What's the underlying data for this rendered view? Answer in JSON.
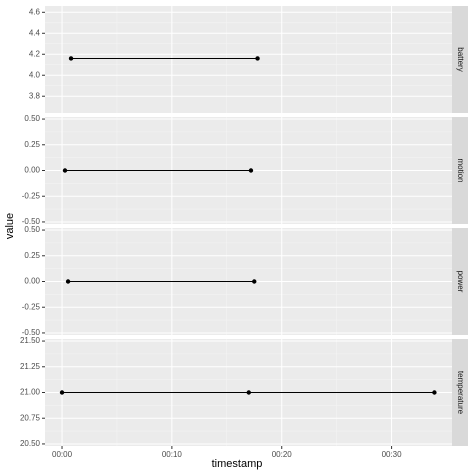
{
  "chart_data": {
    "type": "line",
    "xlabel": "timestamp",
    "ylabel": "value",
    "xlim": [
      -1.55,
      35.5
    ],
    "xticks": [
      {
        "value": 0,
        "label": "00:00"
      },
      {
        "value": 10,
        "label": "00:10"
      },
      {
        "value": 20,
        "label": "00:20"
      },
      {
        "value": 30,
        "label": "00:30"
      }
    ],
    "color": "#000000",
    "grid": true,
    "facets": [
      {
        "label": "battery",
        "x": [
          0.82,
          17.8
        ],
        "values": [
          4.16,
          4.16
        ],
        "ylim": [
          3.64,
          4.66
        ],
        "yticks": [
          3.8,
          {
            "value": 4,
            "label": "4.0"
          },
          4.2,
          4.4,
          4.6
        ]
      },
      {
        "label": "motion",
        "x": [
          0.27,
          17.2
        ],
        "values": [
          0,
          0
        ],
        "ylim": [
          -0.52,
          0.52
        ],
        "yticks": [
          {
            "value": -0.5,
            "label": "-0.50"
          },
          {
            "value": -0.25,
            "label": "-0.25"
          },
          {
            "value": 0,
            "label": "0.00"
          },
          {
            "value": 0.25,
            "label": "0.25"
          },
          {
            "value": 0.5,
            "label": "0.50"
          }
        ]
      },
      {
        "label": "power",
        "x": [
          0.55,
          17.5
        ],
        "values": [
          0,
          0
        ],
        "ylim": [
          -0.52,
          0.52
        ],
        "yticks": [
          {
            "value": -0.5,
            "label": "-0.50"
          },
          {
            "value": -0.25,
            "label": "-0.25"
          },
          {
            "value": 0,
            "label": "0.00"
          },
          {
            "value": 0.25,
            "label": "0.25"
          },
          {
            "value": 0.5,
            "label": "0.50"
          }
        ]
      },
      {
        "label": "temperature",
        "x": [
          0,
          17.0,
          33.9
        ],
        "values": [
          21,
          21,
          21
        ],
        "ylim": [
          20.48,
          21.52
        ],
        "yticks": [
          {
            "value": 20.5,
            "label": "20.50"
          },
          {
            "value": 20.75,
            "label": "20.75"
          },
          {
            "value": 21,
            "label": "21.00"
          },
          {
            "value": 21.25,
            "label": "21.25"
          },
          {
            "value": 21.5,
            "label": "21.50"
          }
        ]
      }
    ]
  }
}
